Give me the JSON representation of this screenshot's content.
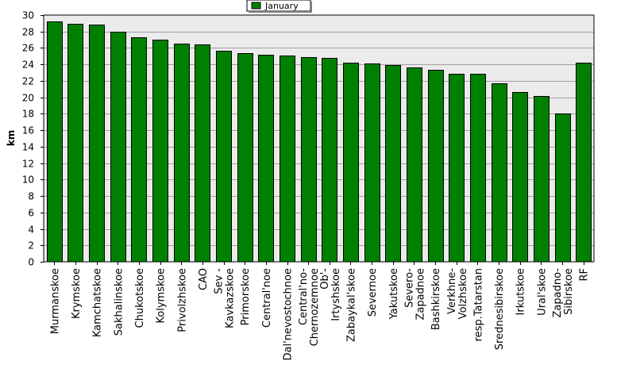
{
  "chart_data": {
    "type": "bar",
    "legend": "top-center",
    "grid": true,
    "ylabel": "km",
    "xlabel": "",
    "title": "",
    "ylim": [
      0,
      30
    ],
    "yticks": [
      0,
      2,
      4,
      6,
      8,
      10,
      12,
      14,
      16,
      18,
      20,
      22,
      24,
      26,
      28,
      30
    ],
    "series": [
      {
        "name": "January",
        "color": "#008000"
      }
    ],
    "categories": [
      [
        "Murmanskoe"
      ],
      [
        "Krymskoe"
      ],
      [
        "Kamchatskoe"
      ],
      [
        "Sakhalinskoe"
      ],
      [
        "Chukotskoe"
      ],
      [
        "Kolymskoe"
      ],
      [
        "Privolzhskoe"
      ],
      [
        "CAO"
      ],
      [
        "Sev -",
        "Kavkazskoe"
      ],
      [
        "Primorskoe"
      ],
      [
        "Central'noe"
      ],
      [
        "Dal'nevostochnoe"
      ],
      [
        "Central'no-",
        "Chernozemnoe"
      ],
      [
        "Ob'-",
        "Irtyshskoe"
      ],
      [
        "Zabaykal'skoe"
      ],
      [
        "Severnoe"
      ],
      [
        "Yakutskoe"
      ],
      [
        "Severo-",
        "Zapadnoe"
      ],
      [
        "Bashkirskoe"
      ],
      [
        "Verkhne-",
        "Volzhskoe"
      ],
      [
        "resp.Tatarstan"
      ],
      [
        "Srednesibirskoe"
      ],
      [
        "Irkutskoe"
      ],
      [
        "Ural'skoe"
      ],
      [
        "Zapadno-",
        "Sibirskoe"
      ],
      [
        "RF"
      ]
    ],
    "values": [
      29.2,
      28.9,
      28.8,
      28.0,
      27.3,
      27.0,
      26.5,
      26.4,
      25.7,
      25.4,
      25.2,
      25.1,
      24.9,
      24.8,
      24.2,
      24.1,
      23.9,
      23.6,
      23.3,
      22.9,
      22.9,
      21.7,
      20.6,
      20.2,
      18.0,
      24.2
    ]
  }
}
